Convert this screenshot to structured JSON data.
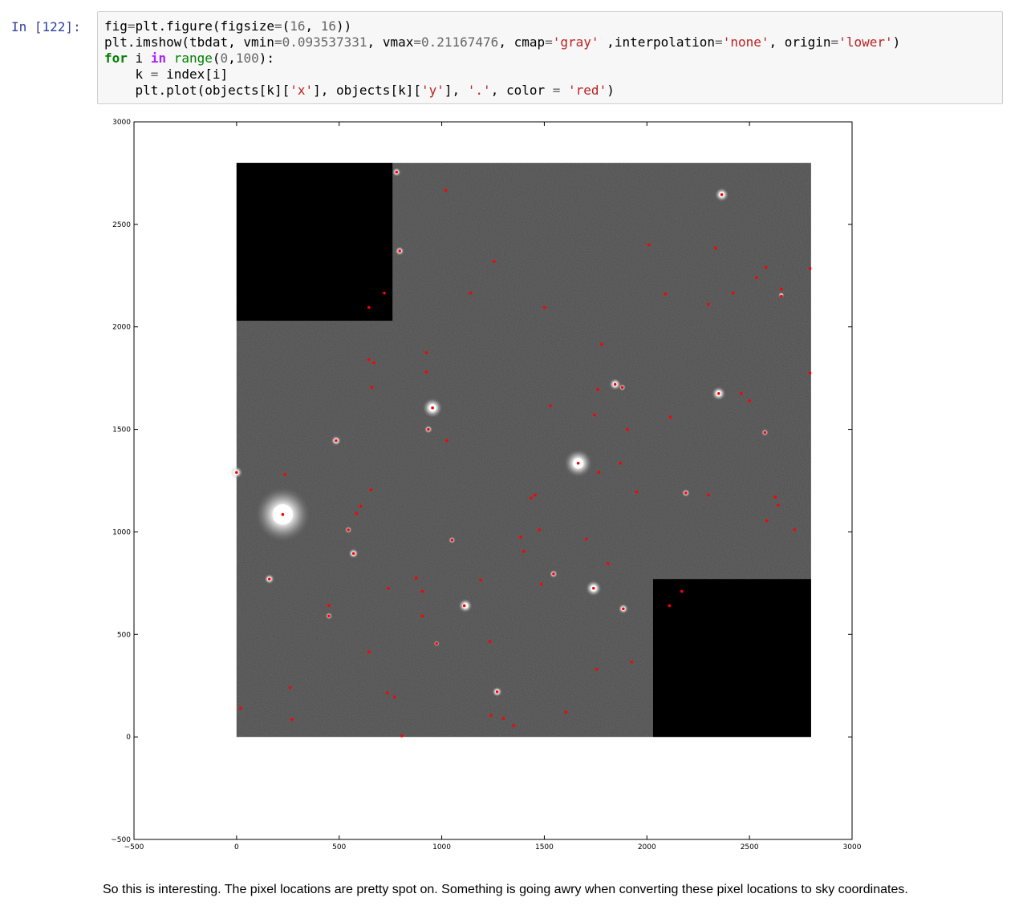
{
  "cell": {
    "prompt": "In [122]:",
    "code": {
      "line1": {
        "a": "fig",
        "op1": "=",
        "b": "plt",
        "c": ".",
        "d": "figure(figsize",
        "op2": "=",
        "e": "(",
        "n1": "16",
        "f": ", ",
        "n2": "16",
        "g": "))"
      },
      "line2": {
        "a": "plt",
        "b": ".",
        "c": "imshow(tbdat, vmin",
        "op1": "=",
        "n1": "0.093537331",
        "d": ", vmax",
        "op2": "=",
        "n2": "0.21167476",
        "e": ", cmap",
        "op3": "=",
        "s1": "'gray'",
        "f": " ,interpolation",
        "op4": "=",
        "s2": "'none'",
        "g": ", origin",
        "op5": "=",
        "s3": "'lower'",
        "h": ")"
      },
      "line3": {
        "kw1": "for",
        "a": " i ",
        "kw2": "in",
        "b": " ",
        "fn": "range",
        "c": "(",
        "n1": "0",
        "d": ",",
        "n2": "100",
        "e": "):"
      },
      "line4": {
        "indent": "    ",
        "a": "k ",
        "op": "=",
        "b": " index[i]"
      },
      "line5": {
        "indent": "    ",
        "a": "plt",
        "b": ".",
        "c": "plot(objects[k][",
        "s1": "'x'",
        "d": "], objects[k][",
        "s2": "'y'",
        "e": "], ",
        "s3": "'.'",
        "f": ", color ",
        "op": "=",
        "g": " ",
        "s4": "'red'",
        "h": ")"
      }
    }
  },
  "chart_data": {
    "type": "scatter",
    "title": "",
    "xlabel": "",
    "ylabel": "",
    "xlim": [
      -500,
      3000
    ],
    "ylim": [
      -500,
      3000
    ],
    "xticks": [
      -500,
      0,
      500,
      1000,
      1500,
      2000,
      2500,
      3000
    ],
    "yticks": [
      -500,
      0,
      500,
      1000,
      1500,
      2000,
      2500,
      3000
    ],
    "xtick_labels": [
      "−500",
      "0",
      "500",
      "1000",
      "1500",
      "2000",
      "2500",
      "3000"
    ],
    "ytick_labels": [
      "−500",
      "0",
      "500",
      "1000",
      "1500",
      "2000",
      "2500",
      "3000"
    ],
    "image_extent": [
      0,
      2800,
      0,
      2800
    ],
    "cmap": "gray",
    "masked_regions": [
      {
        "x": [
          0,
          760
        ],
        "y": [
          2030,
          2800
        ]
      },
      {
        "x": [
          2030,
          2800
        ],
        "y": [
          0,
          770
        ]
      }
    ],
    "marker_color": "#ff0000",
    "bright_stars": [
      {
        "x": 225,
        "y": 1085,
        "r": 55
      },
      {
        "x": 1665,
        "y": 1335,
        "r": 28
      },
      {
        "x": 955,
        "y": 1605,
        "r": 20
      },
      {
        "x": 2365,
        "y": 2645,
        "r": 14
      },
      {
        "x": 1740,
        "y": 725,
        "r": 16
      },
      {
        "x": 1115,
        "y": 640,
        "r": 14
      },
      {
        "x": 2350,
        "y": 1675,
        "r": 14
      },
      {
        "x": 1845,
        "y": 1720,
        "r": 12
      },
      {
        "x": 0,
        "y": 1290,
        "r": 12
      },
      {
        "x": 160,
        "y": 770,
        "r": 10
      },
      {
        "x": 485,
        "y": 1445,
        "r": 10
      },
      {
        "x": 570,
        "y": 895,
        "r": 10
      },
      {
        "x": 1270,
        "y": 220,
        "r": 10
      },
      {
        "x": 1885,
        "y": 625,
        "r": 10
      },
      {
        "x": 780,
        "y": 2755,
        "r": 9
      },
      {
        "x": 795,
        "y": 2370,
        "r": 9
      },
      {
        "x": 2190,
        "y": 1190,
        "r": 8
      },
      {
        "x": 1545,
        "y": 795,
        "r": 8
      },
      {
        "x": 935,
        "y": 1500,
        "r": 8
      },
      {
        "x": 450,
        "y": 590,
        "r": 7
      },
      {
        "x": 1050,
        "y": 960,
        "r": 7
      },
      {
        "x": 1880,
        "y": 1705,
        "r": 7
      },
      {
        "x": 2575,
        "y": 1485,
        "r": 7
      },
      {
        "x": 545,
        "y": 1010,
        "r": 7
      },
      {
        "x": 975,
        "y": 455,
        "r": 6
      },
      {
        "x": 2655,
        "y": 2155,
        "r": 6
      }
    ],
    "x": [
      780,
      1020,
      2365,
      795,
      1255,
      2010,
      2335,
      2580,
      2535,
      2655,
      2655,
      2795,
      2090,
      2300,
      2420,
      1500,
      1140,
      720,
      645,
      1780,
      925,
      645,
      670,
      925,
      1845,
      1880,
      1760,
      2350,
      2460,
      2500,
      1530,
      660,
      955,
      1745,
      2115,
      1025,
      935,
      1905,
      2575,
      485,
      1665,
      1765,
      1870,
      0,
      235,
      2795,
      655,
      1435,
      1455,
      1950,
      2190,
      2300,
      2625,
      2640,
      605,
      585,
      225,
      545,
      1475,
      1385,
      2585,
      1705,
      1400,
      1050,
      2720,
      570,
      1810,
      1545,
      1190,
      875,
      740,
      905,
      1485,
      1740,
      1110,
      1885,
      450,
      450,
      905,
      975,
      2110,
      2170,
      1235,
      645,
      1925,
      1755,
      1270,
      735,
      770,
      260,
      20,
      1605,
      1240,
      1300,
      1350,
      805,
      160,
      270
    ],
    "y": [
      2755,
      2665,
      2645,
      2370,
      2320,
      2400,
      2385,
      2290,
      2240,
      2185,
      2150,
      2285,
      2160,
      2110,
      2165,
      2095,
      2165,
      2165,
      2095,
      1915,
      1875,
      1840,
      1825,
      1780,
      1720,
      1705,
      1695,
      1675,
      1675,
      1640,
      1615,
      1705,
      1605,
      1570,
      1560,
      1445,
      1500,
      1500,
      1485,
      1445,
      1335,
      1290,
      1335,
      1290,
      1280,
      1775,
      1205,
      1165,
      1180,
      1195,
      1190,
      1180,
      1170,
      1130,
      1125,
      1090,
      1085,
      1010,
      1010,
      975,
      1055,
      965,
      905,
      960,
      1010,
      895,
      845,
      795,
      765,
      775,
      725,
      710,
      745,
      725,
      640,
      625,
      640,
      590,
      590,
      455,
      640,
      710,
      465,
      415,
      365,
      330,
      220,
      215,
      195,
      240,
      140,
      120,
      105,
      90,
      55,
      5,
      770,
      85
    ]
  },
  "markdown": {
    "text": "So this is interesting. The pixel locations are pretty spot on. Something is going awry when converting these pixel locations to sky coordinates."
  }
}
